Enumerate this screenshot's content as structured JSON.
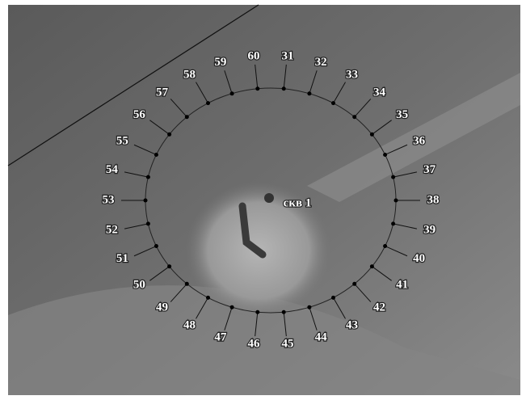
{
  "well_label": "скв 1",
  "points": [
    "31",
    "32",
    "33",
    "34",
    "35",
    "36",
    "37",
    "38",
    "39",
    "40",
    "41",
    "42",
    "43",
    "44",
    "45",
    "46",
    "47",
    "48",
    "49",
    "50",
    "51",
    "52",
    "53",
    "54",
    "55",
    "56",
    "57",
    "58",
    "59",
    "60"
  ]
}
